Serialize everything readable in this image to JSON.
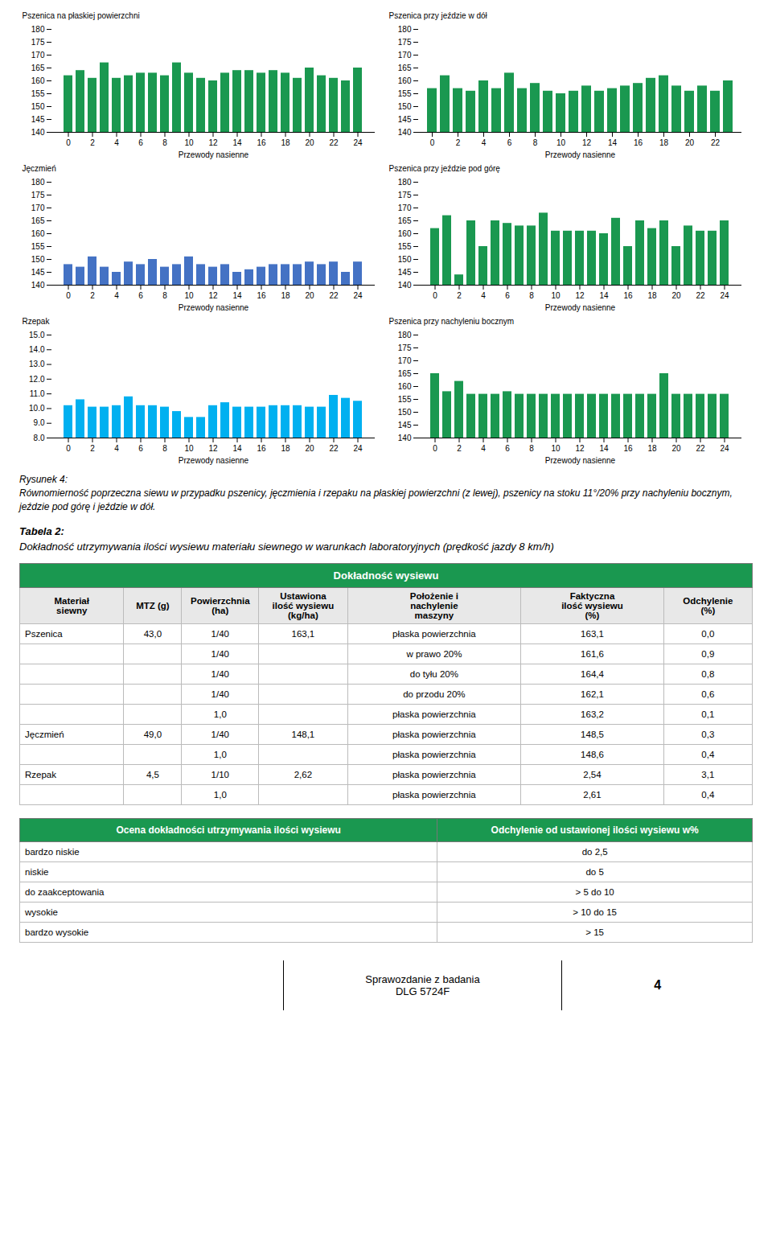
{
  "chart_data": [
    {
      "type": "bar",
      "ylabel": "Pszenica na płaskiej powierzchni",
      "xlabel": "Przewody nasienne",
      "color": "#1a9850",
      "ylim": [
        140,
        180
      ],
      "yticks": [
        140,
        145,
        150,
        155,
        160,
        165,
        170,
        175,
        180
      ],
      "categories": [
        "0",
        null,
        "2",
        null,
        "4",
        null,
        "6",
        null,
        "8",
        null,
        "10",
        null,
        "12",
        null,
        "14",
        null,
        "16",
        null,
        "18",
        null,
        "20",
        null,
        "22",
        null,
        "24"
      ],
      "values": [
        162,
        164,
        161,
        167,
        161,
        162,
        163,
        163,
        162,
        167,
        163,
        161,
        160,
        163,
        164,
        164,
        163,
        164,
        163,
        161,
        165,
        162,
        161,
        160,
        165
      ]
    },
    {
      "type": "bar",
      "ylabel": "Pszenica przy jeździe w dół",
      "xlabel": "Przewody nasienne",
      "color": "#1a9850",
      "ylim": [
        140,
        180
      ],
      "yticks": [
        140,
        145,
        150,
        155,
        160,
        165,
        170,
        175,
        180
      ],
      "categories": [
        "0",
        null,
        "2",
        null,
        "4",
        null,
        "6",
        null,
        "8",
        null,
        "10",
        null,
        "12",
        null,
        "14",
        null,
        "16",
        null,
        "18",
        null,
        "20",
        null,
        "22",
        null
      ],
      "values": [
        157,
        162,
        157,
        156,
        160,
        157,
        163,
        157,
        159,
        156,
        155,
        156,
        158,
        156,
        157,
        158,
        159,
        161,
        162,
        158,
        156,
        158,
        156,
        160
      ]
    },
    {
      "type": "bar",
      "ylabel": "Jęczmień",
      "xlabel": "Przewody nasienne",
      "color": "#4472c4",
      "ylim": [
        140,
        180
      ],
      "yticks": [
        140,
        145,
        150,
        155,
        160,
        165,
        170,
        175,
        180
      ],
      "categories": [
        "0",
        null,
        "2",
        null,
        "4",
        null,
        "6",
        null,
        "8",
        null,
        "10",
        null,
        "12",
        null,
        "14",
        null,
        "16",
        null,
        "18",
        null,
        "20",
        null,
        "22",
        null,
        "24"
      ],
      "values": [
        148,
        147,
        151,
        147,
        145,
        149,
        148,
        150,
        147,
        148,
        151,
        148,
        147,
        148,
        145,
        146,
        147,
        148,
        148,
        148,
        149,
        148,
        149,
        145,
        149
      ]
    },
    {
      "type": "bar",
      "ylabel": "Pszenica przy jeździe pod górę",
      "xlabel": "Przewody nasienne",
      "color": "#1a9850",
      "ylim": [
        140,
        180
      ],
      "yticks": [
        140,
        145,
        150,
        155,
        160,
        165,
        170,
        175,
        180
      ],
      "categories": [
        "0",
        null,
        "2",
        null,
        "4",
        null,
        "6",
        null,
        "8",
        null,
        "10",
        null,
        "12",
        null,
        "14",
        null,
        "16",
        null,
        "18",
        null,
        "20",
        null,
        "22",
        null,
        "24"
      ],
      "values": [
        162,
        167,
        144,
        165,
        155,
        165,
        164,
        163,
        163,
        168,
        161,
        161,
        161,
        161,
        160,
        166,
        155,
        165,
        162,
        165,
        155,
        163,
        161,
        161,
        165
      ]
    },
    {
      "type": "bar",
      "ylabel": "Rzepak",
      "xlabel": "Przewody nasienne",
      "color": "#00b0f0",
      "ylim": [
        8,
        15
      ],
      "yticks": [
        8,
        9,
        10,
        11,
        12,
        13,
        14,
        15
      ],
      "categories": [
        "0",
        null,
        "2",
        null,
        "4",
        null,
        "6",
        null,
        "8",
        null,
        "10",
        null,
        "12",
        null,
        "14",
        null,
        "16",
        null,
        "18",
        null,
        "20",
        null,
        "22",
        null,
        "24"
      ],
      "values": [
        10.2,
        10.6,
        10.1,
        10.1,
        10.2,
        10.8,
        10.2,
        10.2,
        10.1,
        9.8,
        9.4,
        9.4,
        10.2,
        10.4,
        10.1,
        10.1,
        10.1,
        10.2,
        10.2,
        10.2,
        10.1,
        10.1,
        10.9,
        10.7,
        10.5
      ]
    },
    {
      "type": "bar",
      "ylabel": "Pszenica przy nachyleniu bocznym",
      "xlabel": "Przewody nasienne",
      "color": "#1a9850",
      "ylim": [
        140,
        180
      ],
      "yticks": [
        140,
        145,
        150,
        155,
        160,
        165,
        170,
        175,
        180
      ],
      "categories": [
        "0",
        null,
        "2",
        null,
        "4",
        null,
        "6",
        null,
        "8",
        null,
        "10",
        null,
        "12",
        null,
        "14",
        null,
        "16",
        null,
        "18",
        null,
        "20",
        null,
        "22",
        null,
        "24"
      ],
      "values": [
        165,
        158,
        162,
        157,
        157,
        157,
        158,
        157,
        157,
        157,
        157,
        157,
        157,
        157,
        157,
        157,
        157,
        157,
        157,
        165,
        157,
        157,
        157,
        157,
        157
      ]
    }
  ],
  "caption": {
    "title": "Rysunek 4:",
    "text": "Równomierność poprzeczna siewu w przypadku pszenicy, jęczmienia i rzepaku na płaskiej powierzchni (z lewej), pszenicy na stoku 11°/20% przy nachyleniu bocznym, jeździe pod górę i jeździe w dół."
  },
  "table": {
    "title_bold": "Tabela 2:",
    "title_italic": "Dokładność utrzymywania ilości wysiewu materiału siewnego w warunkach laboratoryjnych (prędkość jazdy 8 km/h)",
    "header_color": "#1a9850",
    "header_text": "Dokładność wysiewu",
    "col_headers": [
      "Materiał\nsiewny",
      "MTZ (g)",
      "Powierzchnia\n(ha)",
      "Ustawiona\nilość wysiewu\n(kg/ha)",
      "Położenie i\nnachylenie\nmaszyny",
      "Faktyczna\nilość wysiewu\n(%)",
      "Odchylenie\n(%)"
    ],
    "rows": [
      [
        "Pszenica",
        "43,0",
        "1/40",
        "163,1",
        "płaska powierzchnia",
        "163,1",
        "0,0"
      ],
      [
        null,
        null,
        "1/40",
        null,
        "w prawo 20%",
        "161,6",
        "0,9"
      ],
      [
        null,
        null,
        "1/40",
        null,
        "do tyłu 20%",
        "164,4",
        "0,8"
      ],
      [
        null,
        null,
        "1/40",
        null,
        "do przodu 20%",
        "162,1",
        "0,6"
      ],
      [
        null,
        null,
        "1,0",
        null,
        "płaska powierzchnia",
        "163,2",
        "0,1"
      ],
      [
        "Jęczmień",
        "49,0",
        "1/40",
        "148,1",
        "płaska powierzchnia",
        "148,5",
        "0,3"
      ],
      [
        null,
        null,
        "1,0",
        null,
        "płaska powierzchnia",
        "148,6",
        "0,4"
      ],
      [
        "Rzepak",
        "4,5",
        "1/10",
        "2,62",
        "płaska powierzchnia",
        "2,54",
        "3,1"
      ],
      [
        null,
        null,
        "1,0",
        null,
        "płaska powierzchnia",
        "2,61",
        "0,4"
      ]
    ],
    "legend_headers": [
      "Ocena dokładności utrzymywania ilości wysiewu",
      "Odchylenie od ustawionej ilości wysiewu w%"
    ],
    "legend_rows": [
      [
        "bardzo niskie",
        "do 2,5"
      ],
      [
        "niskie",
        "do 5"
      ],
      [
        "do zaakceptowania",
        "> 5 do 10"
      ],
      [
        "wysokie",
        "> 10 do 15"
      ],
      [
        "bardzo wysokie",
        "> 15"
      ]
    ]
  },
  "footer": {
    "text": "Sprawozdanie z badania\nDLG 5724F",
    "page": "4"
  }
}
